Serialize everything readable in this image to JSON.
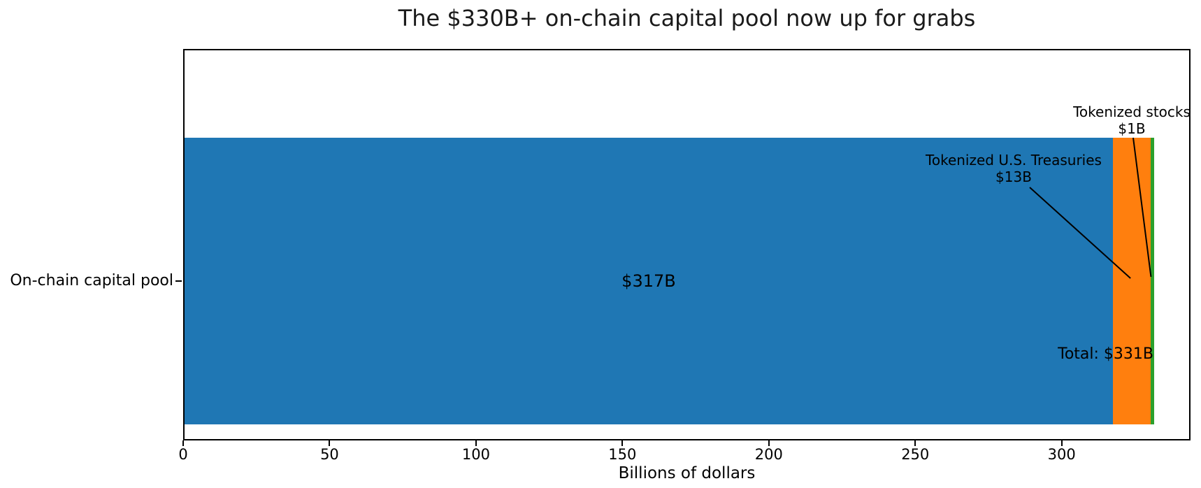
{
  "title": "The $330B+ on-chain capital pool now up for grabs",
  "chart_data": {
    "type": "bar",
    "orientation": "horizontal",
    "title": "The $330B+ on-chain capital pool now up for grabs",
    "xlabel": "Billions of dollars",
    "ylabel": "",
    "categories": [
      "On-chain capital pool"
    ],
    "xlim": [
      0,
      344
    ],
    "xticks": [
      "0",
      "50",
      "100",
      "150",
      "200",
      "250",
      "300"
    ],
    "xtick_values": [
      0,
      50,
      100,
      150,
      200,
      250,
      300
    ],
    "grid": false,
    "legend": false,
    "series": [
      {
        "name": "On-chain capital pool",
        "value": 317,
        "label": "$317B",
        "color": "#1f77b4"
      },
      {
        "name": "Tokenized U.S. Treasuries",
        "value": 13,
        "label": "$13B",
        "color": "#ff7f0e"
      },
      {
        "name": "Tokenized stocks",
        "value": 1,
        "label": "$1B",
        "color": "#2ca02c"
      }
    ],
    "total": 331,
    "total_label": "Total: $331B",
    "annotations": [
      {
        "lines": [
          "Tokenized U.S. Treasuries",
          "$13B"
        ],
        "points_to": "orange-segment-center"
      },
      {
        "lines": [
          "Tokenized stocks",
          "$1B"
        ],
        "points_to": "green-segment-center"
      }
    ],
    "colors": {
      "bar_blue": "#1f77b4",
      "bar_orange": "#ff7f0e",
      "bar_green": "#2ca02c",
      "axes": "#000000",
      "background": "#ffffff"
    }
  }
}
